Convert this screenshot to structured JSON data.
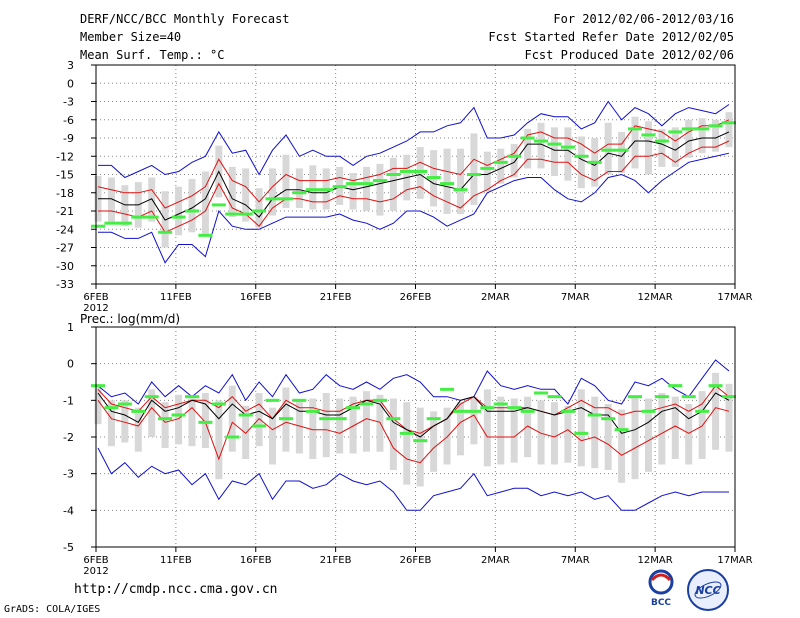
{
  "header": {
    "title": "DERF/NCC/BCC Monthly Forecast",
    "member_size": "Member Size=40",
    "var1_label": "Mean Surf. Temp.: °C",
    "period": "For 2012/02/06-2012/03/16",
    "started": "Fcst Started Refer Date 2012/02/05",
    "produced": "Fcst Produced Date 2012/02/06"
  },
  "footer": {
    "url": "http://cmdp.ncc.cma.gov.cn",
    "credit": "GrADS: COLA/IGES",
    "logo1_text": "BCC",
    "logo2_text": "NCC"
  },
  "colors": {
    "median": "#000000",
    "inner": "#e01010",
    "outer": "#1010cc",
    "obs": "#44ee44",
    "box": "#d8d8d8",
    "grid": "#888888"
  },
  "chart_data": [
    {
      "type": "line",
      "title": "Mean Surf. Temp.: °C",
      "x_tick_labels": [
        "6FEB",
        "11FEB",
        "16FEB",
        "21FEB",
        "26FEB",
        "2MAR",
        "7MAR",
        "12MAR",
        "17MAR"
      ],
      "x_year_label": "2012",
      "ylim": [
        -33,
        3
      ],
      "y_ticks": [
        3,
        0,
        -3,
        -6,
        -9,
        -12,
        -15,
        -18,
        -21,
        -24,
        -27,
        -30,
        -33
      ],
      "series": [
        {
          "name": "max",
          "values": [
            -13.5,
            -13.5,
            -15.5,
            -14.5,
            -13.5,
            -15,
            -14.5,
            -13,
            -12,
            -8,
            -11.5,
            -11,
            -15,
            -11,
            -8.5,
            -12,
            -11,
            -12,
            -12,
            -13.5,
            -12,
            -11.5,
            -10.5,
            -9.5,
            -8,
            -8,
            -7,
            -6.5,
            -4,
            -9,
            -9,
            -8.5,
            -6.5,
            -5,
            -5.5,
            -5.5,
            -7.5,
            -6.5,
            -3,
            -6,
            -4,
            -5,
            -7,
            -5,
            -4,
            -4.5,
            -5,
            -3.5
          ]
        },
        {
          "name": "p75",
          "values": [
            -17,
            -17.5,
            -18,
            -18,
            -17.5,
            -20.5,
            -19.5,
            -18.5,
            -17,
            -12.5,
            -16,
            -17,
            -19.5,
            -17,
            -15,
            -16,
            -16,
            -16,
            -15.5,
            -16,
            -15.5,
            -15,
            -14,
            -14,
            -13,
            -14,
            -14.5,
            -15,
            -12.5,
            -13.5,
            -12.5,
            -11.5,
            -8.5,
            -8,
            -9,
            -9,
            -10,
            -11.5,
            -10,
            -10,
            -7,
            -7.5,
            -8,
            -9.5,
            -8,
            -7,
            -7,
            -6
          ]
        },
        {
          "name": "median",
          "values": [
            -19,
            -19,
            -20,
            -20,
            -19,
            -22.5,
            -21.5,
            -20.5,
            -19,
            -14.5,
            -19,
            -20,
            -22,
            -19,
            -17.5,
            -17.5,
            -18,
            -18,
            -17,
            -17.5,
            -17,
            -16.5,
            -16,
            -15.5,
            -15,
            -16.5,
            -17,
            -17.5,
            -15,
            -15,
            -14,
            -13,
            -10,
            -10,
            -11,
            -11,
            -12.5,
            -13.5,
            -11.5,
            -12,
            -9.5,
            -9.5,
            -10,
            -11,
            -9.5,
            -9,
            -9,
            -8
          ]
        },
        {
          "name": "p25",
          "values": [
            -21,
            -21,
            -21.5,
            -22,
            -21,
            -24.5,
            -23.5,
            -22.5,
            -21,
            -16.5,
            -20.5,
            -21.5,
            -23.5,
            -20.5,
            -19,
            -19,
            -19.5,
            -19.5,
            -18.5,
            -19,
            -19,
            -19.5,
            -19,
            -17.5,
            -17,
            -18.5,
            -19.5,
            -20.5,
            -18.5,
            -17.5,
            -16,
            -15,
            -12.5,
            -12.5,
            -13,
            -13,
            -15,
            -16,
            -14.5,
            -14.5,
            -12,
            -12,
            -11.5,
            -13,
            -11.5,
            -10.5,
            -10.5,
            -9.5
          ]
        },
        {
          "name": "min",
          "values": [
            -24.5,
            -24.5,
            -25.5,
            -25.5,
            -24.5,
            -29.5,
            -26.5,
            -26.5,
            -28.5,
            -21,
            -23.5,
            -24,
            -24,
            -23,
            -22,
            -22,
            -22,
            -22,
            -21.5,
            -22.5,
            -23,
            -24,
            -23,
            -21,
            -21,
            -22,
            -23.5,
            -22.5,
            -21.5,
            -18,
            -17,
            -16,
            -15.5,
            -15.5,
            -17.5,
            -19,
            -19.5,
            -18,
            -15.5,
            -15,
            -16,
            -18,
            -16,
            -14.5,
            -13,
            -12.5,
            -12,
            -11.5
          ]
        },
        {
          "name": "observed",
          "values": [
            -23.5,
            -23,
            -23,
            -22,
            -22,
            -24.5,
            -22,
            -21,
            -25,
            -20,
            -21.5,
            -21.5,
            -21,
            -19,
            -19,
            -18,
            -17.5,
            -17.5,
            -17,
            -16.5,
            -16.5,
            -16,
            -15,
            -14.5,
            -14.5,
            -15.5,
            -16.5,
            -17.5,
            -15,
            -14,
            -13,
            -12,
            -9,
            -9.5,
            -10,
            -10.5,
            -12,
            -13,
            -11,
            -11,
            -7.5,
            -8.5,
            -9.5,
            -8,
            -7.5,
            -7.5,
            -7,
            -6.5
          ]
        }
      ]
    },
    {
      "type": "line",
      "title": "Prec.: log(mm/d)",
      "x_tick_labels": [
        "6FEB",
        "11FEB",
        "16FEB",
        "21FEB",
        "26FEB",
        "2MAR",
        "7MAR",
        "12MAR",
        "17MAR"
      ],
      "x_year_label": "2012",
      "ylim": [
        -5,
        1
      ],
      "y_ticks": [
        1,
        0,
        -1,
        -2,
        -3,
        -4,
        -5
      ],
      "series": [
        {
          "name": "max",
          "values": [
            -0.6,
            -0.9,
            -0.8,
            -1.1,
            -0.5,
            -0.9,
            -0.6,
            -0.9,
            -0.6,
            -0.8,
            -0.3,
            -1.0,
            -0.5,
            -0.9,
            -0.3,
            -0.8,
            -0.7,
            -0.3,
            -0.6,
            -0.7,
            -0.5,
            -0.7,
            -0.4,
            -0.3,
            -0.5,
            -0.9,
            -0.9,
            -1.0,
            -0.9,
            -0.2,
            -0.6,
            -0.7,
            -0.6,
            -0.7,
            -0.7,
            -1.1,
            -0.4,
            -0.6,
            -1.0,
            -1.1,
            -0.5,
            -0.6,
            -0.4,
            -0.7,
            -0.9,
            -0.4,
            0.1,
            -0.2
          ]
        },
        {
          "name": "p75",
          "values": [
            -0.7,
            -1.1,
            -1.2,
            -1.3,
            -0.9,
            -1.2,
            -1.1,
            -1.0,
            -1.0,
            -1.2,
            -0.9,
            -1.3,
            -1.1,
            -1.5,
            -1.0,
            -1.2,
            -1.2,
            -1.3,
            -1.3,
            -1.1,
            -1.0,
            -1.0,
            -1.5,
            -1.8,
            -1.9,
            -1.7,
            -1.5,
            -1.1,
            -0.9,
            -1.2,
            -1.2,
            -1.2,
            -1.2,
            -1.3,
            -1.4,
            -1.2,
            -1.0,
            -1.2,
            -1.2,
            -1.4,
            -1.3,
            -1.3,
            -1.2,
            -1.1,
            -1.3,
            -1.1,
            -0.6,
            -0.9
          ]
        },
        {
          "name": "median",
          "values": [
            -0.8,
            -1.3,
            -1.4,
            -1.6,
            -1.0,
            -1.3,
            -1.2,
            -1.0,
            -1.1,
            -1.5,
            -1.1,
            -1.4,
            -1.3,
            -1.5,
            -1.1,
            -1.3,
            -1.3,
            -1.4,
            -1.4,
            -1.2,
            -1.0,
            -1.1,
            -1.6,
            -1.8,
            -2.0,
            -1.7,
            -1.5,
            -1.0,
            -0.9,
            -1.3,
            -1.3,
            -1.3,
            -1.2,
            -1.3,
            -1.4,
            -1.3,
            -1.2,
            -1.4,
            -1.4,
            -1.9,
            -1.8,
            -1.6,
            -1.3,
            -1.2,
            -1.5,
            -1.3,
            -0.8,
            -1.0
          ]
        },
        {
          "name": "p25",
          "values": [
            -1.0,
            -1.5,
            -1.6,
            -1.7,
            -1.2,
            -1.6,
            -1.5,
            -1.2,
            -1.6,
            -2.6,
            -1.6,
            -1.9,
            -1.5,
            -1.8,
            -1.6,
            -1.7,
            -1.8,
            -1.8,
            -1.9,
            -1.7,
            -1.5,
            -1.6,
            -2.3,
            -2.6,
            -2.7,
            -2.3,
            -2.0,
            -1.6,
            -1.4,
            -2.0,
            -2.0,
            -2.0,
            -1.7,
            -1.9,
            -2.0,
            -1.8,
            -2.1,
            -2.0,
            -2.2,
            -2.5,
            -2.3,
            -2.1,
            -1.9,
            -1.7,
            -1.9,
            -1.7,
            -1.2,
            -1.3
          ]
        },
        {
          "name": "min",
          "values": [
            -2.3,
            -3.0,
            -2.7,
            -3.1,
            -2.8,
            -3.0,
            -2.9,
            -3.3,
            -3.0,
            -3.7,
            -3.2,
            -3.3,
            -3.0,
            -3.7,
            -3.2,
            -3.2,
            -3.4,
            -3.3,
            -3.0,
            -3.2,
            -3.3,
            -3.2,
            -3.5,
            -4.0,
            -4.0,
            -3.6,
            -3.5,
            -3.4,
            -3.0,
            -3.6,
            -3.5,
            -3.4,
            -3.4,
            -3.6,
            -3.5,
            -3.6,
            -3.5,
            -3.7,
            -3.6,
            -4.0,
            -4.0,
            -3.8,
            -3.6,
            -3.5,
            -3.6,
            -3.5,
            -3.5,
            -3.5
          ]
        },
        {
          "name": "observed",
          "values": [
            -0.6,
            -1.2,
            -1.1,
            -1.3,
            -0.9,
            -1.5,
            -1.4,
            -0.9,
            -1.6,
            -1.1,
            -2.0,
            -1.4,
            -1.7,
            -1.0,
            -1.5,
            -1.0,
            -1.3,
            -1.5,
            -1.5,
            -1.2,
            -1.1,
            -1.0,
            -1.5,
            -1.9,
            -2.1,
            -1.5,
            -0.7,
            -1.3,
            -1.3,
            -1.2,
            -1.1,
            -1.2,
            -1.3,
            -0.8,
            -0.9,
            -1.3,
            -1.9,
            -1.4,
            -1.5,
            -1.8,
            -0.9,
            -1.3,
            -0.9,
            -0.6,
            -0.9,
            -1.3,
            -0.6,
            -0.9
          ]
        }
      ]
    }
  ]
}
